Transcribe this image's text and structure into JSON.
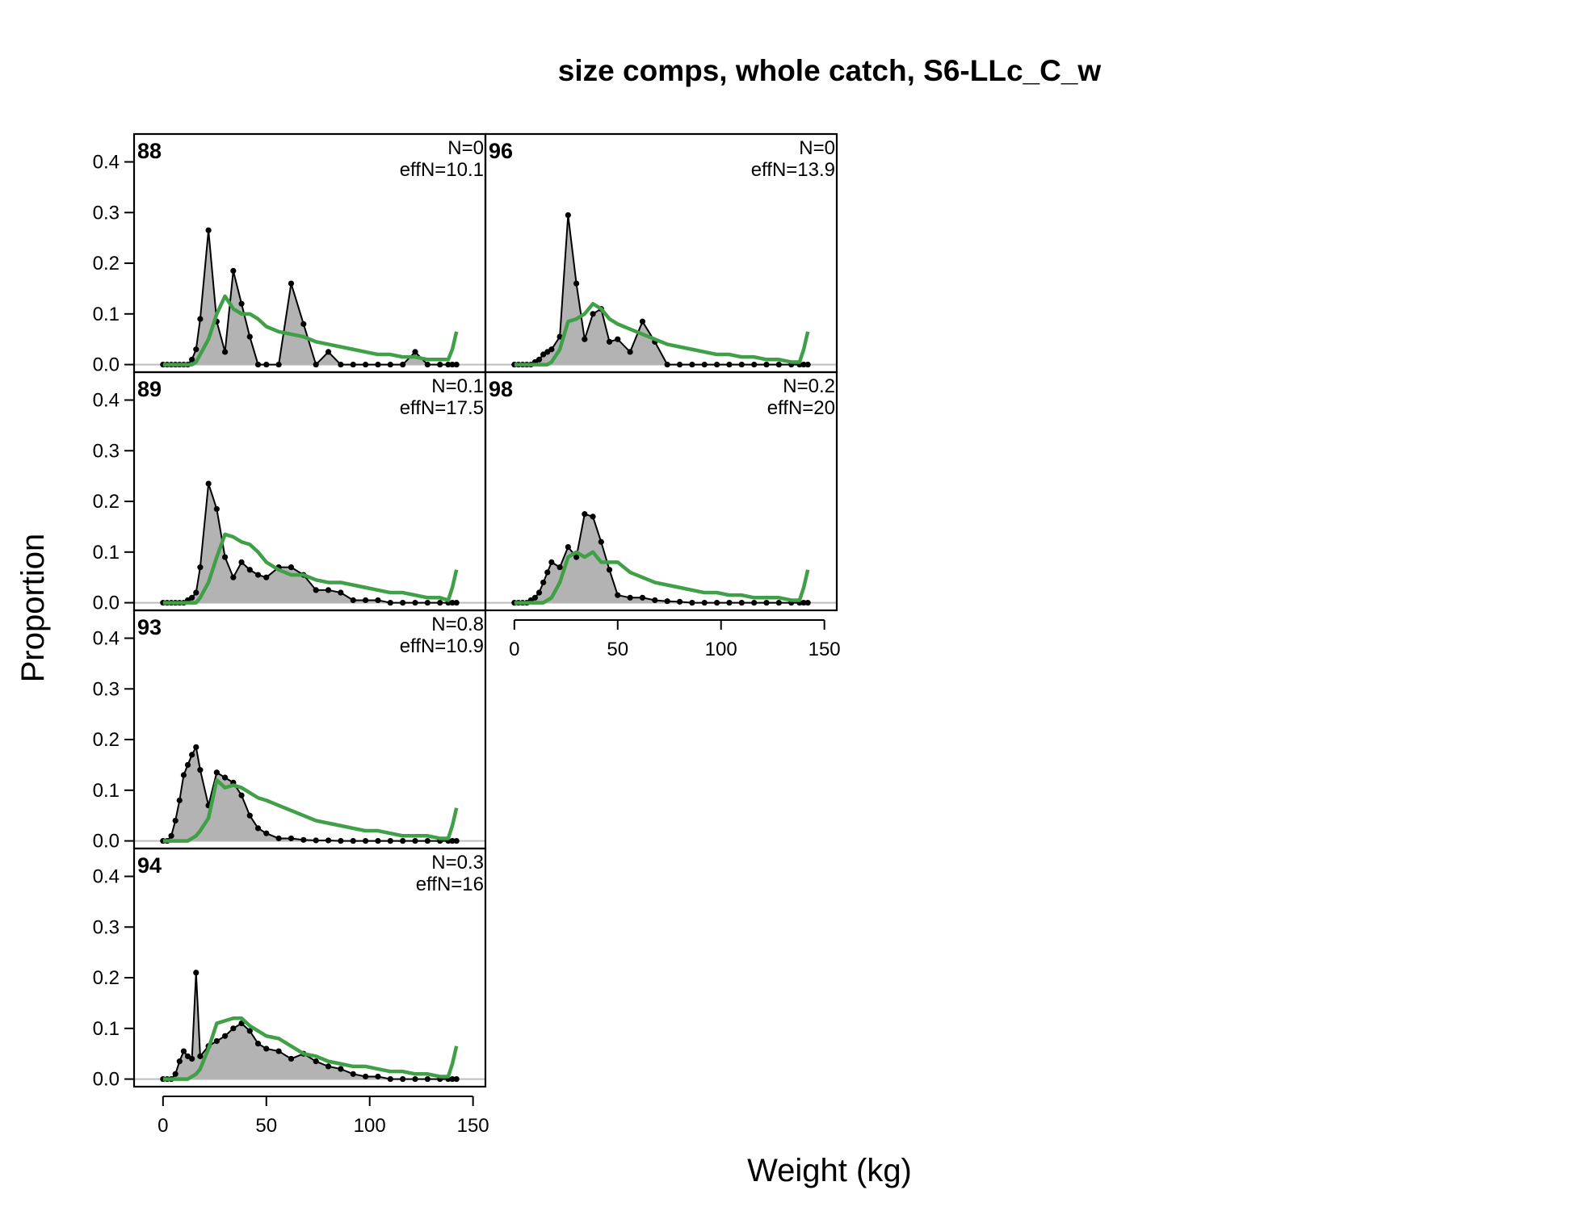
{
  "chart_data": {
    "type": "area",
    "title": "size comps, whole catch, S6-LLc_C_w",
    "xlabel": "Weight (kg)",
    "ylabel": "Proportion",
    "xlim": [
      -14,
      156
    ],
    "ylim": [
      -0.015,
      0.455
    ],
    "x_ticks": [
      0,
      50,
      100,
      150
    ],
    "y_ticks": [
      0.0,
      0.1,
      0.2,
      0.3,
      0.4
    ],
    "x_tick_labels": [
      "0",
      "50",
      "100",
      "150"
    ],
    "y_tick_labels": [
      "0.0",
      "0.1",
      "0.2",
      "0.3",
      "0.4"
    ],
    "bins": [
      0,
      2,
      4,
      6,
      8,
      10,
      12,
      14,
      16,
      18,
      22,
      26,
      30,
      34,
      38,
      42,
      46,
      50,
      56,
      62,
      68,
      74,
      80,
      86,
      92,
      98,
      104,
      110,
      116,
      122,
      128,
      134,
      138,
      140,
      142
    ],
    "colors": {
      "observed_fill": "#b3b3b3",
      "observed_line": "#000000",
      "expected": "#3fa047",
      "zero_line": "#bebebe"
    },
    "legend": "none",
    "grid": false,
    "panels": [
      {
        "year": "88",
        "n_label": "N=0",
        "effn_label": "effN=10.1",
        "observed": [
          0,
          0,
          0,
          0,
          0,
          0,
          0,
          0.01,
          0.03,
          0.09,
          0.265,
          0.085,
          0.025,
          0.185,
          0.12,
          0.055,
          0,
          0,
          0,
          0.16,
          0.08,
          0,
          0.025,
          0,
          0,
          0,
          0,
          0,
          0,
          0.025,
          0,
          0,
          0,
          0,
          0
        ],
        "expected": [
          0,
          0,
          0,
          0,
          0,
          0,
          0,
          0,
          0.005,
          0.02,
          0.05,
          0.1,
          0.135,
          0.11,
          0.1,
          0.1,
          0.09,
          0.075,
          0.065,
          0.06,
          0.055,
          0.045,
          0.04,
          0.035,
          0.03,
          0.025,
          0.02,
          0.02,
          0.015,
          0.015,
          0.01,
          0.01,
          0.01,
          0.03,
          0.065
        ]
      },
      {
        "year": "89",
        "n_label": "N=0.1",
        "effn_label": "effN=17.5",
        "observed": [
          0,
          0,
          0,
          0,
          0,
          0,
          0.005,
          0.01,
          0.02,
          0.07,
          0.235,
          0.185,
          0.09,
          0.05,
          0.08,
          0.065,
          0.055,
          0.05,
          0.07,
          0.07,
          0.055,
          0.025,
          0.025,
          0.02,
          0.005,
          0.005,
          0.005,
          0,
          0,
          0,
          0,
          0,
          0,
          0,
          0
        ],
        "expected": [
          0,
          0,
          0,
          0,
          0,
          0,
          0,
          0,
          0,
          0.01,
          0.04,
          0.09,
          0.135,
          0.13,
          0.12,
          0.115,
          0.1,
          0.08,
          0.065,
          0.055,
          0.055,
          0.045,
          0.04,
          0.04,
          0.035,
          0.03,
          0.025,
          0.02,
          0.02,
          0.015,
          0.01,
          0.01,
          0.005,
          0.03,
          0.065
        ]
      },
      {
        "year": "93",
        "n_label": "N=0.8",
        "effn_label": "effN=10.9",
        "observed": [
          0,
          0,
          0.01,
          0.04,
          0.08,
          0.13,
          0.15,
          0.17,
          0.185,
          0.14,
          0.07,
          0.135,
          0.125,
          0.115,
          0.09,
          0.05,
          0.025,
          0.015,
          0.005,
          0.005,
          0.002,
          0.001,
          0.001,
          0,
          0,
          0,
          0,
          0,
          0,
          0,
          0,
          0,
          0,
          0,
          0
        ],
        "expected": [
          0,
          0,
          0,
          0,
          0,
          0,
          0,
          0.005,
          0.01,
          0.02,
          0.045,
          0.12,
          0.105,
          0.11,
          0.105,
          0.095,
          0.085,
          0.08,
          0.07,
          0.06,
          0.05,
          0.04,
          0.035,
          0.03,
          0.025,
          0.02,
          0.02,
          0.015,
          0.01,
          0.01,
          0.01,
          0.005,
          0.005,
          0.03,
          0.065
        ]
      },
      {
        "year": "94",
        "n_label": "N=0.3",
        "effn_label": "effN=16",
        "observed": [
          0,
          0,
          0,
          0.01,
          0.035,
          0.055,
          0.045,
          0.04,
          0.21,
          0.045,
          0.065,
          0.075,
          0.085,
          0.1,
          0.11,
          0.095,
          0.07,
          0.06,
          0.055,
          0.04,
          0.05,
          0.035,
          0.025,
          0.02,
          0.01,
          0.005,
          0.005,
          0,
          0,
          0,
          0,
          0,
          0,
          0,
          0
        ],
        "expected": [
          0,
          0,
          0,
          0,
          0,
          0,
          0,
          0.005,
          0.01,
          0.02,
          0.06,
          0.11,
          0.115,
          0.12,
          0.12,
          0.105,
          0.095,
          0.085,
          0.08,
          0.065,
          0.05,
          0.045,
          0.035,
          0.03,
          0.025,
          0.025,
          0.02,
          0.015,
          0.015,
          0.01,
          0.01,
          0.005,
          0.005,
          0.03,
          0.065
        ]
      },
      {
        "year": "96",
        "n_label": "N=0",
        "effn_label": "effN=13.9",
        "observed": [
          0,
          0,
          0,
          0,
          0,
          0.005,
          0.01,
          0.02,
          0.025,
          0.03,
          0.055,
          0.295,
          0.16,
          0.05,
          0.1,
          0.11,
          0.045,
          0.05,
          0.025,
          0.085,
          0.045,
          0,
          0,
          0,
          0,
          0,
          0,
          0,
          0,
          0,
          0,
          0,
          0,
          0,
          0
        ],
        "expected": [
          0,
          0,
          0,
          0,
          0,
          0,
          0,
          0,
          0,
          0.005,
          0.03,
          0.085,
          0.09,
          0.1,
          0.12,
          0.11,
          0.09,
          0.08,
          0.07,
          0.06,
          0.05,
          0.04,
          0.035,
          0.03,
          0.025,
          0.02,
          0.02,
          0.015,
          0.015,
          0.01,
          0.01,
          0.005,
          0.005,
          0.03,
          0.065
        ]
      },
      {
        "year": "98",
        "n_label": "N=0.2",
        "effn_label": "effN=20",
        "observed": [
          0,
          0,
          0,
          0,
          0.005,
          0.01,
          0.02,
          0.04,
          0.06,
          0.08,
          0.07,
          0.11,
          0.09,
          0.175,
          0.17,
          0.12,
          0.065,
          0.015,
          0.01,
          0.01,
          0.005,
          0.003,
          0.002,
          0,
          0,
          0,
          0,
          0,
          0,
          0,
          0,
          0,
          0,
          0,
          0
        ],
        "expected": [
          0,
          0,
          0,
          0,
          0,
          0,
          0,
          0,
          0.005,
          0.01,
          0.04,
          0.09,
          0.1,
          0.09,
          0.1,
          0.08,
          0.08,
          0.08,
          0.06,
          0.05,
          0.04,
          0.035,
          0.03,
          0.025,
          0.02,
          0.02,
          0.015,
          0.015,
          0.01,
          0.01,
          0.01,
          0.005,
          0.005,
          0.03,
          0.065
        ]
      }
    ]
  }
}
